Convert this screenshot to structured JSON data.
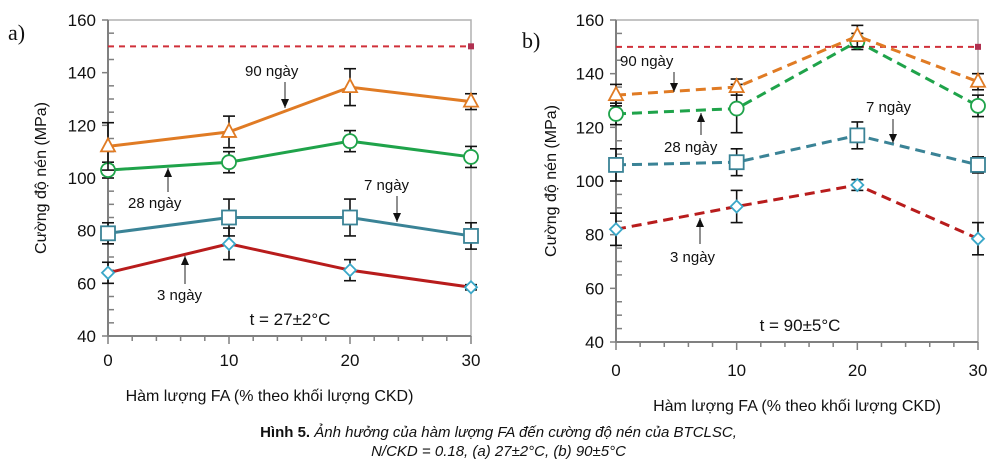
{
  "caption": {
    "figure_label": "Hình 5.",
    "line1": "Ảnh hưởng của hàm lượng FA đến cường độ nén của BTCLSC,",
    "line2": "N/CKD = 0.18, (a) 27±2°C, (b) 90±5°C"
  },
  "chart_data": [
    {
      "type": "line",
      "panel_label": "a)",
      "xlabel": "Hàm lượng FA (% theo khối lượng CKD)",
      "ylabel": "Cường độ nén (MPa)",
      "x": [
        0,
        10,
        20,
        30
      ],
      "xlim": [
        0,
        30
      ],
      "ylim": [
        40,
        160
      ],
      "xticks": [
        0,
        10,
        20,
        30
      ],
      "yticks": [
        40,
        60,
        80,
        100,
        120,
        140,
        160
      ],
      "grid": false,
      "line_style": "solid",
      "reference_line": {
        "y": 150,
        "color": "#d0303a",
        "style": "dashed"
      },
      "temperature_annotation": "t = 27±2°C",
      "series": [
        {
          "name": "3 ngày",
          "color": "#b81c1c",
          "marker": "diamond",
          "values": [
            64,
            75,
            65,
            58.5
          ],
          "errors": [
            4,
            6,
            4,
            1
          ]
        },
        {
          "name": "7 ngày",
          "color": "#3a8396",
          "marker": "square",
          "values": [
            79,
            85,
            85,
            78
          ],
          "errors": [
            4,
            7,
            7,
            5
          ]
        },
        {
          "name": "28 ngày",
          "color": "#1fa34a",
          "marker": "circle",
          "values": [
            103,
            106,
            114,
            108
          ],
          "errors": [
            3,
            4,
            4,
            4
          ]
        },
        {
          "name": "90 ngày",
          "color": "#e07b24",
          "marker": "triangle",
          "values": [
            112,
            117.5,
            134.5,
            129
          ],
          "errors": [
            9,
            6,
            7,
            3
          ]
        }
      ],
      "annotations": [
        {
          "text": "90 ngày",
          "target_series": "90 ngày"
        },
        {
          "text": "28 ngày",
          "target_series": "28 ngày"
        },
        {
          "text": "7 ngày",
          "target_series": "7 ngày"
        },
        {
          "text": "3 ngày",
          "target_series": "3 ngày"
        }
      ]
    },
    {
      "type": "line",
      "panel_label": "b)",
      "xlabel": "Hàm lượng FA (% theo khối lượng CKD)",
      "ylabel": "Cường độ nén (MPa)",
      "x": [
        0,
        10,
        20,
        30
      ],
      "xlim": [
        0,
        30
      ],
      "ylim": [
        40,
        160
      ],
      "xticks": [
        0,
        10,
        20,
        30
      ],
      "yticks": [
        40,
        60,
        80,
        100,
        120,
        140,
        160
      ],
      "grid": false,
      "line_style": "dashed",
      "reference_line": {
        "y": 150,
        "color": "#d0303a",
        "style": "dashed"
      },
      "temperature_annotation": "t = 90±5°C",
      "series": [
        {
          "name": "3 ngày",
          "color": "#b81c1c",
          "marker": "diamond",
          "values": [
            82,
            90.5,
            98.5,
            78.5
          ],
          "errors": [
            6,
            6,
            2,
            6
          ]
        },
        {
          "name": "7 ngày",
          "color": "#3a8396",
          "marker": "square",
          "values": [
            106,
            107,
            117,
            106
          ],
          "errors": [
            6,
            5,
            5,
            3
          ]
        },
        {
          "name": "28 ngày",
          "color": "#1fa34a",
          "marker": "circle",
          "values": [
            125,
            127,
            152,
            128
          ],
          "errors": [
            4,
            9,
            3,
            4
          ]
        },
        {
          "name": "90 ngày",
          "color": "#e07b24",
          "marker": "triangle",
          "values": [
            132,
            135,
            154,
            137
          ],
          "errors": [
            4,
            3,
            4,
            3
          ]
        }
      ],
      "annotations": [
        {
          "text": "90 ngày",
          "target_series": "90 ngày"
        },
        {
          "text": "28 ngày",
          "target_series": "28 ngày"
        },
        {
          "text": "7 ngày",
          "target_series": "7 ngày"
        },
        {
          "text": "3 ngày",
          "target_series": "3 ngày"
        }
      ]
    }
  ]
}
